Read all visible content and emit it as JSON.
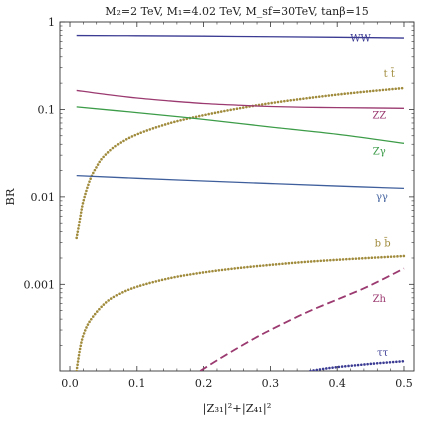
{
  "chart_data": {
    "type": "line",
    "title": "M₂=2 TeV,  M₁=4.02 TeV, M_sf=30TeV, tanβ=15",
    "xlabel": "|Z₃₁|²+|Z₄₁|²",
    "ylabel": "BR",
    "xlim": [
      -0.015,
      0.515
    ],
    "ylim": [
      0.000102,
      1.0
    ],
    "yscale": "log",
    "grid": false,
    "legend": "none",
    "x_ticks": [
      {
        "value": 0.0,
        "label": "0.0"
      },
      {
        "value": 0.1,
        "label": "0.1"
      },
      {
        "value": 0.2,
        "label": "0.2"
      },
      {
        "value": 0.3,
        "label": "0.3"
      },
      {
        "value": 0.4,
        "label": "0.4"
      },
      {
        "value": 0.5,
        "label": "0.5"
      }
    ],
    "y_ticks": [
      {
        "value": 1,
        "label": "1"
      },
      {
        "value": 0.1,
        "label": "0.1"
      },
      {
        "value": 0.01,
        "label": "0.01"
      },
      {
        "value": 0.001,
        "label": "0.001"
      }
    ],
    "series": [
      {
        "name": "WW",
        "color": "#3b3b93",
        "dash": "solid",
        "label_pos": [
          0.435,
          0.6
        ],
        "x": [
          0.01,
          0.1,
          0.2,
          0.3,
          0.4,
          0.5
        ],
        "y": [
          0.7,
          0.695,
          0.688,
          0.678,
          0.668,
          0.655
        ]
      },
      {
        "name": "t t̄",
        "color": "#a08b3c",
        "dash": "dotted",
        "label_pos": [
          0.478,
          0.235
        ],
        "x": [
          0.01,
          0.015,
          0.02,
          0.03,
          0.04,
          0.05,
          0.07,
          0.1,
          0.15,
          0.2,
          0.25,
          0.3,
          0.35,
          0.4,
          0.45,
          0.5
        ],
        "y": [
          0.0034,
          0.0055,
          0.0088,
          0.0155,
          0.022,
          0.0285,
          0.039,
          0.052,
          0.07,
          0.086,
          0.102,
          0.118,
          0.133,
          0.148,
          0.162,
          0.176
        ]
      },
      {
        "name": "ZZ",
        "color": "#9b3a70",
        "dash": "solid",
        "label_pos": [
          0.463,
          0.079
        ],
        "x": [
          0.01,
          0.05,
          0.1,
          0.15,
          0.2,
          0.25,
          0.3,
          0.35,
          0.4,
          0.45,
          0.5
        ],
        "y": [
          0.165,
          0.15,
          0.135,
          0.125,
          0.117,
          0.112,
          0.108,
          0.106,
          0.105,
          0.104,
          0.103
        ]
      },
      {
        "name": "Zγ",
        "color": "#3c9c48",
        "dash": "solid",
        "label_pos": [
          0.463,
          0.0305
        ],
        "x": [
          0.01,
          0.1,
          0.2,
          0.3,
          0.4,
          0.5
        ],
        "y": [
          0.107,
          0.092,
          0.077,
          0.063,
          0.052,
          0.041
        ]
      },
      {
        "name": "γγ",
        "color": "#3f5f9c",
        "dash": "solid",
        "label_pos": [
          0.467,
          0.0092
        ],
        "x": [
          0.01,
          0.1,
          0.2,
          0.3,
          0.4,
          0.5
        ],
        "y": [
          0.0175,
          0.0163,
          0.0152,
          0.0142,
          0.0133,
          0.0125
        ]
      },
      {
        "name": "b b̄",
        "color": "#a08b3c",
        "dash": "dotted",
        "label_pos": [
          0.468,
          0.0027
        ],
        "x": [
          0.01,
          0.012,
          0.015,
          0.02,
          0.03,
          0.05,
          0.07,
          0.1,
          0.15,
          0.2,
          0.25,
          0.3,
          0.35,
          0.4,
          0.45,
          0.5
        ],
        "y": [
          0.000102,
          0.00013,
          0.00018,
          0.00026,
          0.00038,
          0.00058,
          0.00075,
          0.00094,
          0.00118,
          0.00137,
          0.00153,
          0.00167,
          0.0018,
          0.00191,
          0.00201,
          0.00211
        ]
      },
      {
        "name": "Zh",
        "color": "#9b3a70",
        "dash": "dashed",
        "label_pos": [
          0.463,
          0.00063
        ],
        "x": [
          0.195,
          0.22,
          0.25,
          0.28,
          0.3,
          0.33,
          0.36,
          0.4,
          0.44,
          0.47,
          0.5
        ],
        "y": [
          0.000102,
          0.000135,
          0.000185,
          0.00025,
          0.0003,
          0.00039,
          0.0005,
          0.00067,
          0.0009,
          0.00116,
          0.00152
        ]
      },
      {
        "name": "ττ",
        "color": "#3b3b93",
        "dash": "dotted",
        "label_pos": [
          0.468,
          0.000152
        ],
        "x": [
          0.36,
          0.38,
          0.4,
          0.43,
          0.46,
          0.5
        ],
        "y": [
          0.000102,
          0.000108,
          0.000113,
          0.000119,
          0.000125,
          0.000132
        ]
      }
    ]
  }
}
